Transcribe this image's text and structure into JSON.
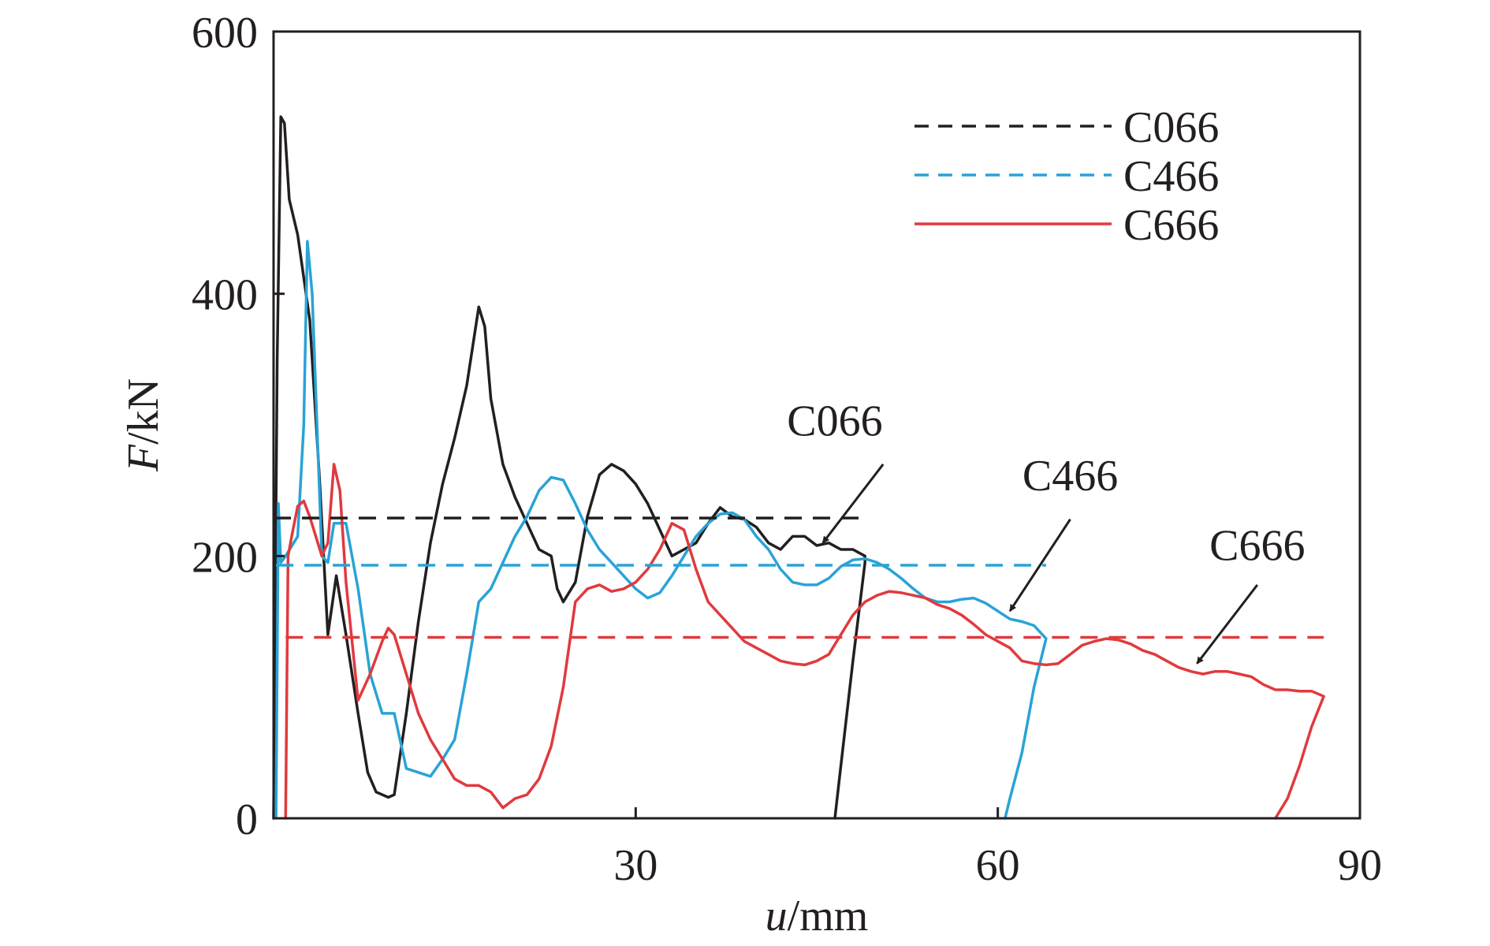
{
  "chart_data": {
    "type": "line",
    "title": "",
    "xlabel_italic": "u",
    "xlabel_unit": "/mm",
    "ylabel_italic": "F",
    "ylabel_unit": "/kN",
    "xlim": [
      0,
      90
    ],
    "ylim": [
      0,
      600
    ],
    "xticks": [
      "30",
      "60",
      "90"
    ],
    "yticks": [
      "0",
      "200",
      "400",
      "600"
    ],
    "grid": false,
    "legend_position": "top-right",
    "series": [
      {
        "name": "C066",
        "color": "#231f20",
        "mean_line": 229,
        "points": [
          [
            0,
            0
          ],
          [
            0.3,
            350
          ],
          [
            0.6,
            535
          ],
          [
            0.9,
            530
          ],
          [
            1.3,
            472
          ],
          [
            2,
            445
          ],
          [
            3,
            380
          ],
          [
            3.8,
            260
          ],
          [
            4.5,
            140
          ],
          [
            5.2,
            185
          ],
          [
            6,
            140
          ],
          [
            7,
            80
          ],
          [
            7.8,
            35
          ],
          [
            8.5,
            20
          ],
          [
            9.5,
            16
          ],
          [
            10,
            18
          ],
          [
            11,
            80
          ],
          [
            12,
            150
          ],
          [
            13,
            210
          ],
          [
            14,
            255
          ],
          [
            15,
            290
          ],
          [
            16,
            330
          ],
          [
            17,
            390
          ],
          [
            17.5,
            375
          ],
          [
            18,
            320
          ],
          [
            19,
            270
          ],
          [
            20,
            245
          ],
          [
            21,
            225
          ],
          [
            22,
            205
          ],
          [
            23,
            200
          ],
          [
            23.5,
            175
          ],
          [
            24,
            165
          ],
          [
            25,
            180
          ],
          [
            26,
            230
          ],
          [
            27,
            262
          ],
          [
            28,
            270
          ],
          [
            29,
            265
          ],
          [
            30,
            255
          ],
          [
            31,
            240
          ],
          [
            32,
            220
          ],
          [
            33,
            200
          ],
          [
            34,
            205
          ],
          [
            35,
            210
          ],
          [
            36,
            225
          ],
          [
            37,
            237
          ],
          [
            38,
            230
          ],
          [
            39,
            228
          ],
          [
            40,
            222
          ],
          [
            41,
            210
          ],
          [
            42,
            205
          ],
          [
            42.5,
            210
          ],
          [
            43,
            215
          ],
          [
            44,
            215
          ],
          [
            45,
            208
          ],
          [
            46,
            210
          ],
          [
            47,
            205
          ],
          [
            48,
            205
          ],
          [
            49,
            200
          ],
          [
            49,
            195
          ],
          [
            48,
            120
          ],
          [
            47,
            40
          ],
          [
            46.5,
            0
          ]
        ]
      },
      {
        "name": "C466",
        "color": "#29a3d6",
        "mean_line": 193,
        "points": [
          [
            0.2,
            0
          ],
          [
            0.4,
            240
          ],
          [
            0.6,
            195
          ],
          [
            1,
            200
          ],
          [
            2,
            215
          ],
          [
            2.5,
            300
          ],
          [
            2.8,
            440
          ],
          [
            3.2,
            400
          ],
          [
            3.6,
            300
          ],
          [
            4,
            200
          ],
          [
            4.5,
            195
          ],
          [
            5,
            225
          ],
          [
            6,
            225
          ],
          [
            7,
            175
          ],
          [
            8,
            110
          ],
          [
            9,
            80
          ],
          [
            10,
            80
          ],
          [
            11,
            38
          ],
          [
            12,
            35
          ],
          [
            13,
            32
          ],
          [
            14,
            45
          ],
          [
            15,
            60
          ],
          [
            16,
            110
          ],
          [
            17,
            165
          ],
          [
            18,
            175
          ],
          [
            19,
            195
          ],
          [
            20,
            215
          ],
          [
            21,
            230
          ],
          [
            22,
            250
          ],
          [
            23,
            260
          ],
          [
            24,
            258
          ],
          [
            25,
            240
          ],
          [
            26,
            220
          ],
          [
            27,
            205
          ],
          [
            28,
            195
          ],
          [
            29,
            185
          ],
          [
            30,
            175
          ],
          [
            31,
            168
          ],
          [
            32,
            172
          ],
          [
            33,
            185
          ],
          [
            34,
            200
          ],
          [
            35,
            215
          ],
          [
            36,
            225
          ],
          [
            37,
            232
          ],
          [
            38,
            233
          ],
          [
            39,
            228
          ],
          [
            40,
            215
          ],
          [
            41,
            205
          ],
          [
            42,
            190
          ],
          [
            43,
            180
          ],
          [
            44,
            178
          ],
          [
            45,
            178
          ],
          [
            46,
            183
          ],
          [
            47,
            192
          ],
          [
            48,
            197
          ],
          [
            49,
            198
          ],
          [
            50,
            195
          ],
          [
            51,
            190
          ],
          [
            52,
            183
          ],
          [
            53,
            175
          ],
          [
            54,
            168
          ],
          [
            55,
            165
          ],
          [
            56,
            165
          ],
          [
            57,
            167
          ],
          [
            58,
            168
          ],
          [
            59,
            164
          ],
          [
            60,
            158
          ],
          [
            61,
            152
          ],
          [
            62,
            150
          ],
          [
            63,
            147
          ],
          [
            64,
            137
          ],
          [
            63,
            100
          ],
          [
            62,
            50
          ],
          [
            61,
            15
          ],
          [
            60.6,
            0
          ]
        ]
      },
      {
        "name": "C666",
        "color": "#e03a3e",
        "mean_line": 138,
        "points": [
          [
            1,
            0
          ],
          [
            1.2,
            200
          ],
          [
            1.5,
            215
          ],
          [
            2,
            238
          ],
          [
            2.5,
            242
          ],
          [
            3,
            230
          ],
          [
            3.5,
            215
          ],
          [
            4,
            200
          ],
          [
            4.5,
            210
          ],
          [
            5,
            270
          ],
          [
            5.5,
            250
          ],
          [
            6,
            180
          ],
          [
            7,
            90
          ],
          [
            8,
            110
          ],
          [
            9,
            135
          ],
          [
            9.5,
            145
          ],
          [
            10,
            140
          ],
          [
            11,
            110
          ],
          [
            12,
            80
          ],
          [
            13,
            60
          ],
          [
            14,
            45
          ],
          [
            15,
            30
          ],
          [
            16,
            25
          ],
          [
            17,
            25
          ],
          [
            18,
            20
          ],
          [
            19,
            8
          ],
          [
            20,
            15
          ],
          [
            21,
            18
          ],
          [
            22,
            30
          ],
          [
            23,
            55
          ],
          [
            24,
            100
          ],
          [
            25,
            165
          ],
          [
            26,
            175
          ],
          [
            27,
            178
          ],
          [
            28,
            173
          ],
          [
            29,
            175
          ],
          [
            30,
            180
          ],
          [
            31,
            190
          ],
          [
            32,
            205
          ],
          [
            33,
            225
          ],
          [
            34,
            220
          ],
          [
            35,
            190
          ],
          [
            36,
            165
          ],
          [
            37,
            155
          ],
          [
            38,
            145
          ],
          [
            39,
            135
          ],
          [
            40,
            130
          ],
          [
            41,
            125
          ],
          [
            42,
            120
          ],
          [
            43,
            118
          ],
          [
            44,
            117
          ],
          [
            45,
            120
          ],
          [
            46,
            125
          ],
          [
            47,
            140
          ],
          [
            48,
            155
          ],
          [
            49,
            165
          ],
          [
            50,
            170
          ],
          [
            51,
            173
          ],
          [
            52,
            172
          ],
          [
            53,
            170
          ],
          [
            54,
            168
          ],
          [
            55,
            163
          ],
          [
            56,
            160
          ],
          [
            57,
            155
          ],
          [
            58,
            148
          ],
          [
            59,
            140
          ],
          [
            60,
            135
          ],
          [
            61,
            130
          ],
          [
            62,
            120
          ],
          [
            63,
            118
          ],
          [
            64,
            117
          ],
          [
            65,
            118
          ],
          [
            66,
            125
          ],
          [
            67,
            132
          ],
          [
            68,
            135
          ],
          [
            69,
            137
          ],
          [
            70,
            136
          ],
          [
            71,
            133
          ],
          [
            72,
            128
          ],
          [
            73,
            125
          ],
          [
            74,
            120
          ],
          [
            75,
            115
          ],
          [
            76,
            112
          ],
          [
            77,
            110
          ],
          [
            78,
            112
          ],
          [
            79,
            112
          ],
          [
            80,
            110
          ],
          [
            81,
            108
          ],
          [
            82,
            102
          ],
          [
            83,
            98
          ],
          [
            84,
            98
          ],
          [
            85,
            97
          ],
          [
            86,
            97
          ],
          [
            87,
            93
          ],
          [
            86,
            70
          ],
          [
            85,
            40
          ],
          [
            84,
            15
          ],
          [
            83,
            0
          ]
        ]
      }
    ],
    "legend": {
      "entries": [
        {
          "label": "C066",
          "color": "#231f20",
          "style": "dashed"
        },
        {
          "label": "C466",
          "color": "#29a3d6",
          "style": "dashed"
        },
        {
          "label": "C666",
          "color": "#e03a3e",
          "style": "solid"
        }
      ]
    },
    "annotations": [
      {
        "label": "C066",
        "text_at": [
          46.5,
          292
        ],
        "arrow_from": [
          50.5,
          270
        ],
        "arrow_to": [
          45.5,
          210
        ]
      },
      {
        "label": "C466",
        "text_at": [
          66,
          250
        ],
        "arrow_from": [
          66,
          228
        ],
        "arrow_to": [
          61,
          158
        ]
      },
      {
        "label": "C666",
        "text_at": [
          81.5,
          197
        ],
        "arrow_from": [
          81.5,
          178
        ],
        "arrow_to": [
          76.5,
          118
        ]
      }
    ]
  }
}
